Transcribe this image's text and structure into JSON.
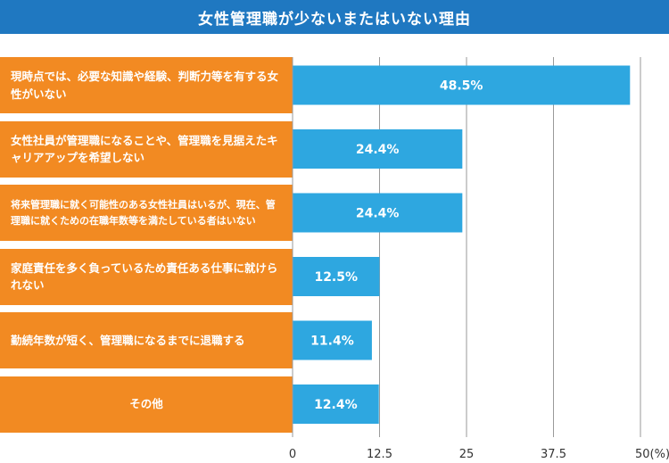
{
  "chart_data": {
    "type": "bar",
    "orientation": "horizontal",
    "title": "女性管理職が少ないまたはいない理由",
    "categories": [
      "現時点では、必要な知識や経験、判断力等を有する女性がいない",
      "女性社員が管理職になることや、管理職を見据えたキャリアアップを希望しない",
      "将来管理職に就く可能性のある女性社員はいるが、現在、管理職に就くための在職年数等を満たしている者はいない",
      "家庭責任を多く負っているため責任ある仕事に就けられない",
      "勤続年数が短く、管理職になるまでに退職する",
      "その他"
    ],
    "values": [
      48.5,
      24.4,
      24.4,
      12.5,
      11.4,
      12.4
    ],
    "value_labels": [
      "48.5%",
      "24.4%",
      "24.4%",
      "12.5%",
      "11.4%",
      "12.4%"
    ],
    "xlim": [
      0,
      50
    ],
    "ticks": [
      0,
      12.5,
      25,
      37.5,
      50
    ],
    "tick_labels": [
      "0",
      "12.5",
      "25",
      "37.5",
      "50(%)"
    ],
    "grid": true,
    "colors": {
      "title_bg": "#1f78c1",
      "category_bg": "#f28a22",
      "bar": "#2ea7e0",
      "grid": "#9a9a9a"
    }
  }
}
